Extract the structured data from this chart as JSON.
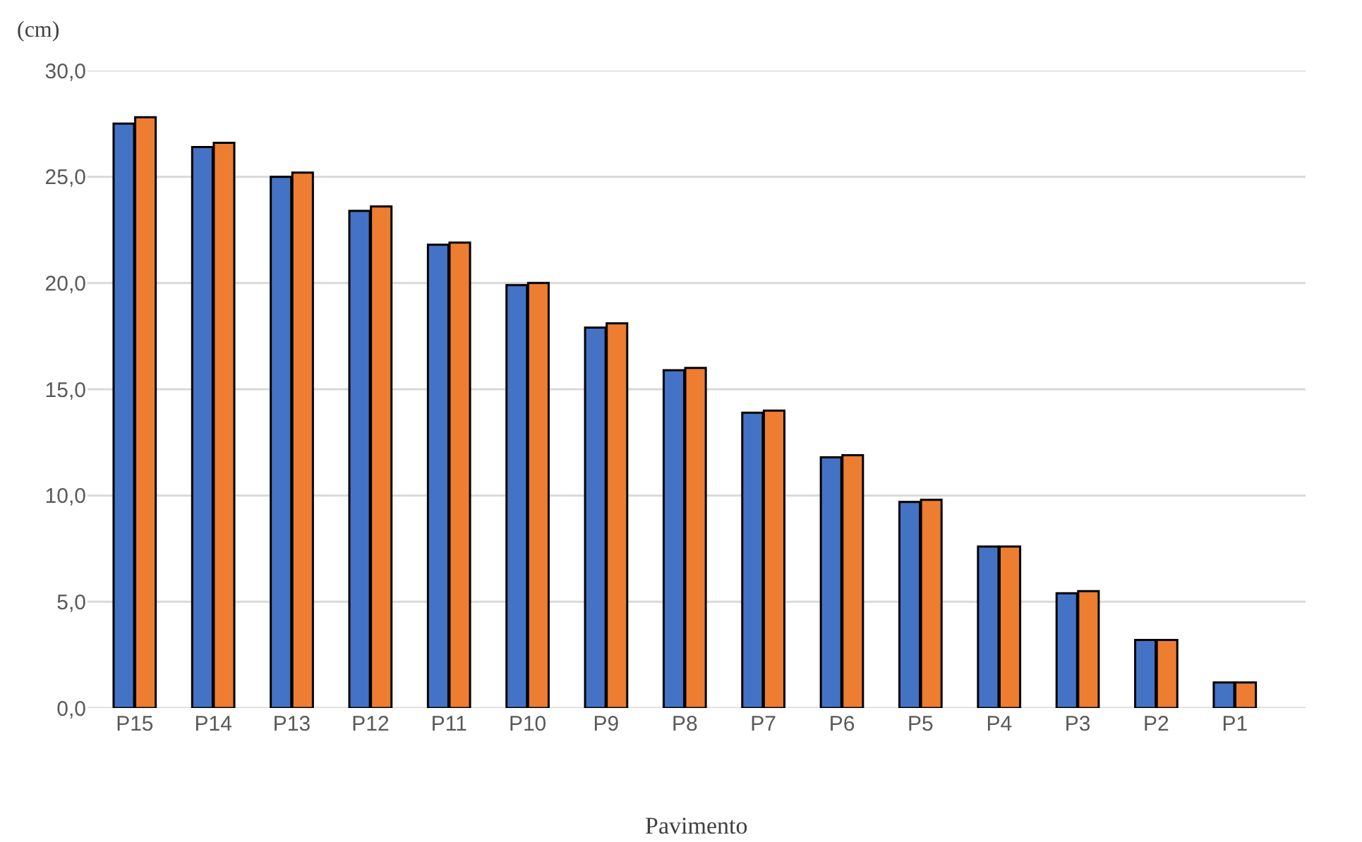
{
  "chart_data": {
    "type": "bar",
    "ylabel": "(cm)",
    "xlabel": "Pavimento",
    "categories": [
      "P15",
      "P14",
      "P13",
      "P12",
      "P11",
      "P10",
      "P9",
      "P8",
      "P7",
      "P6",
      "P5",
      "P4",
      "P3",
      "P2",
      "P1"
    ],
    "series": [
      {
        "color": "#4472c4",
        "values": [
          27.5,
          26.4,
          25.0,
          23.4,
          21.8,
          19.9,
          17.9,
          15.9,
          13.9,
          11.8,
          9.7,
          7.6,
          5.4,
          3.2,
          1.2
        ]
      },
      {
        "color": "#ed7d31",
        "values": [
          27.8,
          26.6,
          25.2,
          23.6,
          21.9,
          20.0,
          18.1,
          16.0,
          14.0,
          11.9,
          9.8,
          7.6,
          5.5,
          3.2,
          1.2
        ]
      }
    ],
    "ylim": [
      0,
      30
    ],
    "yticks": [
      {
        "value": 0,
        "label": "0,0"
      },
      {
        "value": 5,
        "label": "5,0"
      },
      {
        "value": 10,
        "label": "10,0"
      },
      {
        "value": 15,
        "label": "15,0"
      },
      {
        "value": 20,
        "label": "20,0"
      },
      {
        "value": 25,
        "label": "25,0"
      },
      {
        "value": 30,
        "label": "30,0"
      }
    ],
    "grid": "y"
  }
}
